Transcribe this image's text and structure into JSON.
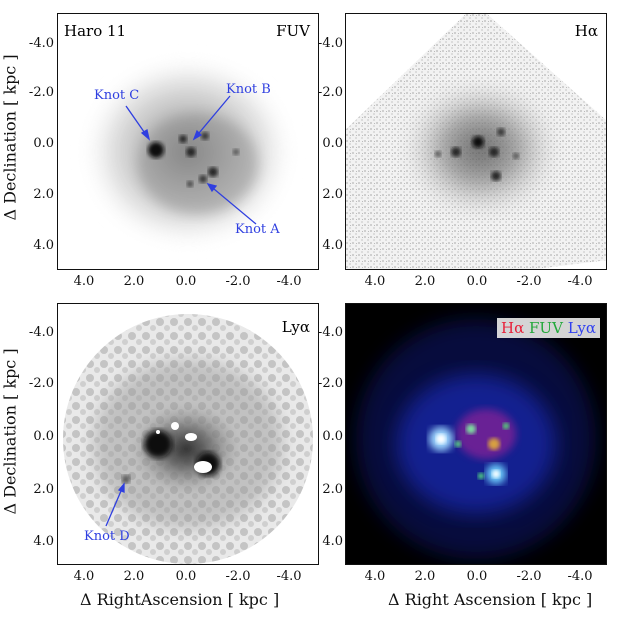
{
  "panels": {
    "fuv": {
      "label": "FUV",
      "object": "Haro 11"
    },
    "ha": {
      "label": "Hα"
    },
    "lya": {
      "label": "Lyα"
    },
    "rgb": {
      "legend_r": "Hα",
      "legend_g": "FUV",
      "legend_b": "Lyα"
    }
  },
  "annotations": {
    "knot_a": "Knot A",
    "knot_b": "Knot B",
    "knot_c": "Knot C",
    "knot_d": "Knot D"
  },
  "axes": {
    "ylabel": "Δ Declination [ kpc ]",
    "xlabel_left": "Δ RightAscension [ kpc ]",
    "xlabel_right": "Δ Right Ascension [ kpc ]",
    "yticks": [
      "-4.0",
      "-2.0",
      "0.0",
      "2.0",
      "4.0"
    ],
    "xticks": [
      "4.0",
      "2.0",
      "0.0",
      "-2.0",
      "-4.0"
    ]
  },
  "colors": {
    "annotation": "#2f3fe0",
    "ha": "#e8203a",
    "fuv": "#22a83a",
    "lya": "#3040f0"
  }
}
